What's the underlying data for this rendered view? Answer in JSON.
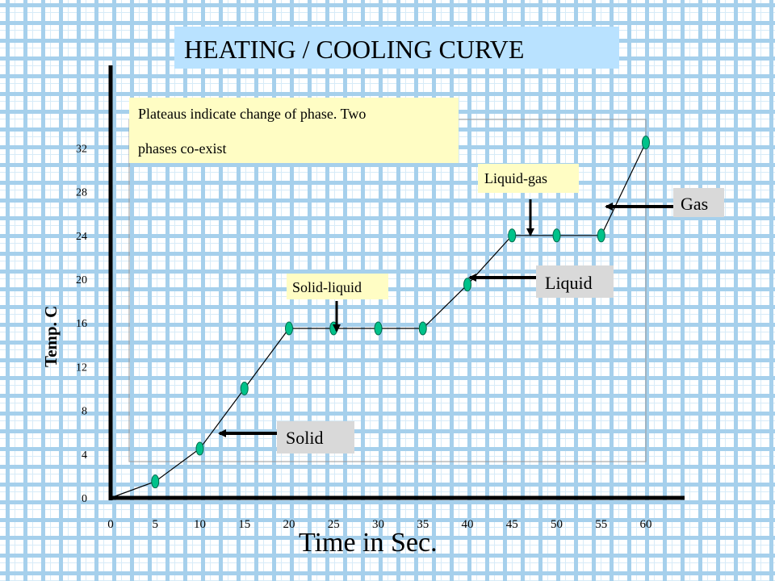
{
  "colors": {
    "title_bg": "#b9e2ff",
    "note_bg": "#fffdc4",
    "label_bg": "#fffdc4",
    "phase_label_bg": "#d9d9d9",
    "point_fill": "#00c28a",
    "point_stroke": "#006b4c",
    "line": "#000000"
  },
  "title": "HEATING / COOLING CURVE",
  "note_lines": [
    "Plateaus indicate change of phase.  Two",
    "phases co-exist"
  ],
  "chart_data": {
    "type": "line",
    "title": "HEATING / COOLING CURVE",
    "xlabel": "Time in Sec.",
    "ylabel": "Temp. C",
    "xlim": [
      0,
      60
    ],
    "ylim": [
      0,
      34
    ],
    "x_ticks": [
      0,
      5,
      10,
      15,
      20,
      25,
      30,
      35,
      40,
      45,
      50,
      55,
      60
    ],
    "y_ticks": [
      0,
      4,
      8,
      12,
      16,
      20,
      24,
      28,
      32
    ],
    "x_tick_labels": [
      "0",
      "5",
      "10",
      "15",
      "20",
      "25",
      "30",
      "35",
      "40",
      "45",
      "50",
      "55",
      "60"
    ],
    "y_tick_labels": [
      "0",
      "4",
      "8",
      "12",
      "16",
      "20",
      "24",
      "28",
      "32"
    ],
    "line_points": [
      {
        "x": 0,
        "y": 0
      },
      {
        "x": 5,
        "y": 1.5
      },
      {
        "x": 10,
        "y": 4.5
      },
      {
        "x": 15,
        "y": 10
      },
      {
        "x": 20,
        "y": 15.5
      },
      {
        "x": 25,
        "y": 15.5
      },
      {
        "x": 30,
        "y": 15.5
      },
      {
        "x": 35,
        "y": 15.5
      },
      {
        "x": 40,
        "y": 19.5
      },
      {
        "x": 45,
        "y": 24
      },
      {
        "x": 50,
        "y": 24
      },
      {
        "x": 55,
        "y": 24
      },
      {
        "x": 60,
        "y": 32.5
      }
    ],
    "marker_indices": [
      1,
      2,
      3,
      4,
      5,
      6,
      7,
      8,
      9,
      10,
      11,
      12
    ],
    "grid": false,
    "annotations": [
      {
        "id": "solid",
        "text": "Solid",
        "style": "phase",
        "points_to": {
          "x": 11,
          "y": 6.3
        }
      },
      {
        "id": "solid-liquid",
        "text": "Solid-liquid",
        "style": "plateau",
        "points_to": {
          "x": 25.5,
          "y": 15.5
        }
      },
      {
        "id": "liquid",
        "text": "Liquid",
        "style": "phase",
        "points_to": {
          "x": 40.5,
          "y": 20
        }
      },
      {
        "id": "liquid-gas",
        "text": "Liquid-gas",
        "style": "plateau",
        "points_to": {
          "x": 48,
          "y": 24
        }
      },
      {
        "id": "gas",
        "text": "Gas",
        "style": "phase",
        "points_to": {
          "x": 55.5,
          "y": 28.5
        }
      }
    ]
  }
}
